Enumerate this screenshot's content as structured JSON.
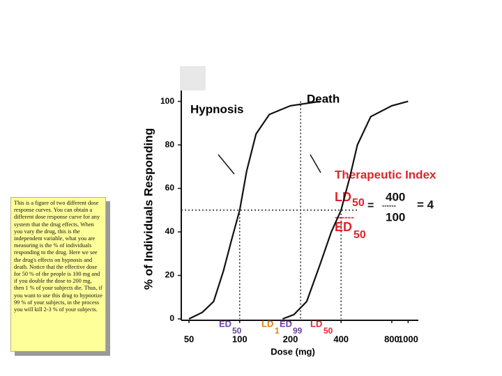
{
  "note": {
    "text": "This is a figure of two different dose response curves. You can obtain a different dose response curve for any system that the drug effects. When you vary the drug, this is the independent variable, what you are measuring is the % of individuals responding to the drug. Here we see the drug's effects on hypnosis and death. Notice that the effective dose for 50 % of the people is 100 mg and if you double the dose to 200 mg, then 1 % of your subjects die. Thus, if you want to use this drug to hypnotize 99 % of your subjects, in the process you will kill 2-3 % of your subjects."
  },
  "chart_data": {
    "type": "line",
    "x_label": "Dose (mg)",
    "y_label": "% of Individuals Responding",
    "x_scale": "log",
    "xlim": [
      45,
      1150
    ],
    "ylim": [
      0,
      105
    ],
    "xticks": [
      50,
      100,
      200,
      400,
      800,
      1000
    ],
    "yticks": [
      0,
      20,
      40,
      60,
      80,
      100
    ],
    "series": [
      {
        "name": "Hypnosis",
        "color": "#111111",
        "x": [
          50,
          60,
          70,
          80,
          90,
          100,
          110,
          125,
          150,
          200,
          300
        ],
        "values": [
          0,
          3,
          8,
          22,
          37,
          50,
          68,
          85,
          94,
          98,
          100
        ]
      },
      {
        "name": "Death",
        "color": "#111111",
        "x": [
          180,
          210,
          250,
          300,
          350,
          400,
          450,
          500,
          600,
          800,
          1000
        ],
        "values": [
          0,
          2,
          8,
          25,
          40,
          50,
          65,
          80,
          93,
          98,
          100
        ]
      }
    ],
    "hline": 50,
    "vlines": [
      100,
      230,
      400
    ],
    "dose_labels": [
      {
        "text": "ED",
        "sub": "50",
        "color": "#6b3fa0"
      },
      {
        "text": "LD",
        "sub": "1",
        "color": "#e07b1a"
      },
      {
        "text": "ED",
        "sub": "99",
        "color": "#6b3fa0"
      },
      {
        "text": "LD",
        "sub": "50",
        "color": "#e0232b"
      }
    ],
    "therapeutic_index": {
      "title": "Therapeutic Index",
      "top": "LD",
      "top_sub": "50",
      "eq": "=",
      "numerator": "400",
      "bar": "------",
      "result": "= 4",
      "divider": "------",
      "bottom": "ED",
      "bottom_sub": "50",
      "denominator": "100",
      "color": "#e0232b"
    }
  }
}
